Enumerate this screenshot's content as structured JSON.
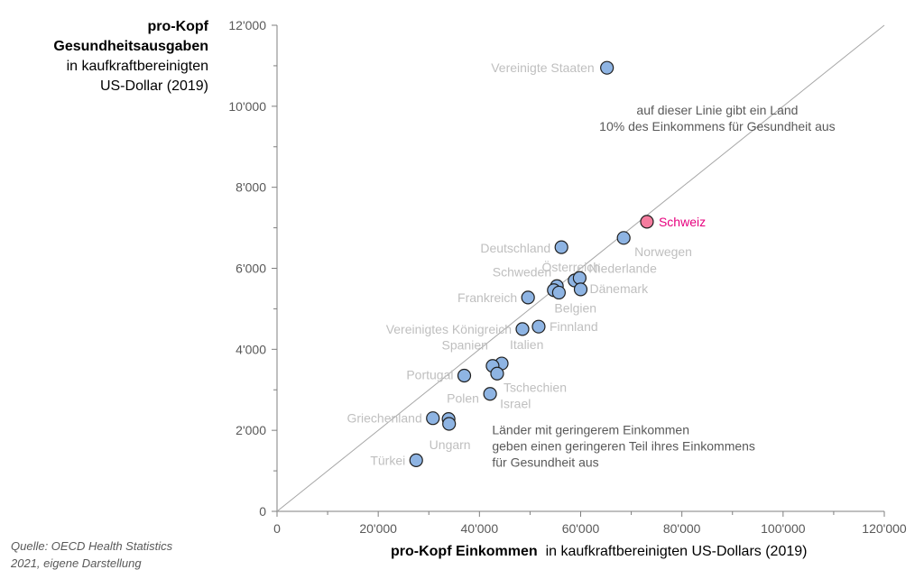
{
  "y_title": {
    "line1": "pro-Kopf",
    "line2": "Gesundheitsausgaben",
    "line3": "in kaufkraftbereinigten",
    "line4": "US-Dollar (2019)"
  },
  "x_title": {
    "bold": "pro-Kopf Einkommen",
    "rest": "in kaufkraftbereinigten US-Dollars (2019)"
  },
  "source": {
    "line1": "Quelle: OECD Health Statistics",
    "line2": "2021, eigene Darstellung"
  },
  "colors": {
    "point_fill": "#8eb4e3",
    "point_stroke": "#1f1f1f",
    "highlight_fill": "#f47c9e",
    "highlight_label": "#e6007e",
    "label_gray": "#bfbfbf",
    "axis": "#7f7f7f",
    "annotation": "#595959"
  },
  "chart_data": {
    "type": "scatter",
    "xlim": [
      0,
      120000
    ],
    "ylim": [
      0,
      12000
    ],
    "xticks": [
      0,
      20000,
      40000,
      60000,
      80000,
      100000,
      120000
    ],
    "xtick_labels": [
      "0",
      "20'000",
      "40'000",
      "60'000",
      "80'000",
      "100'000",
      "120'000"
    ],
    "yticks": [
      0,
      2000,
      4000,
      6000,
      8000,
      10000,
      12000
    ],
    "ytick_labels": [
      "0",
      "2'000",
      "4'000",
      "6'000",
      "8'000",
      "10'000",
      "12'000"
    ],
    "grid": false,
    "reference_line": {
      "x": [
        0,
        120000
      ],
      "y": [
        0,
        12000
      ]
    },
    "annotations": [
      {
        "lines": [
          "auf dieser Linie gibt ein Land",
          "10% des Einkommens für Gesundheit aus"
        ],
        "x": 87000,
        "y": 9800
      },
      {
        "lines": [
          "Länder mit geringerem Einkommen",
          "geben einen geringeren Teil ihres Einkommens",
          "für Gesundheit aus"
        ],
        "x": 42500,
        "y": 1900
      }
    ],
    "points": [
      {
        "label": "Vereinigte Staaten",
        "x": 65200,
        "y": 10950,
        "anchor": "end"
      },
      {
        "label": "Schweiz",
        "x": 73100,
        "y": 7150,
        "anchor": "start",
        "highlight": true
      },
      {
        "label": "Norwegen",
        "x": 68500,
        "y": 6750,
        "anchor": "start"
      },
      {
        "label": "Deutschland",
        "x": 56200,
        "y": 6520,
        "anchor": "end"
      },
      {
        "label": "Österreich",
        "x": 58800,
        "y": 5700,
        "anchor": "middle"
      },
      {
        "label": "Niederlande",
        "x": 59800,
        "y": 5760,
        "anchor": "start"
      },
      {
        "label": "Dänemark",
        "x": 60000,
        "y": 5480,
        "anchor": "start"
      },
      {
        "label": "Schweden",
        "x": 55300,
        "y": 5560,
        "anchor": "end"
      },
      {
        "label": "",
        "x": 54700,
        "y": 5460,
        "anchor": "start"
      },
      {
        "label": "Belgien",
        "x": 55700,
        "y": 5400,
        "anchor": "start"
      },
      {
        "label": "Frankreich",
        "x": 49600,
        "y": 5280,
        "anchor": "end"
      },
      {
        "label": "Finnland",
        "x": 51700,
        "y": 4560,
        "anchor": "start"
      },
      {
        "label": "Vereinigtes Königreich",
        "x": 48500,
        "y": 4500,
        "anchor": "end"
      },
      {
        "label": "Italien",
        "x": 44400,
        "y": 3650,
        "anchor": "start"
      },
      {
        "label": "Spanien",
        "x": 42600,
        "y": 3590,
        "anchor": "end"
      },
      {
        "label": "Tschechien",
        "x": 43500,
        "y": 3400,
        "anchor": "start"
      },
      {
        "label": "Portugal",
        "x": 37000,
        "y": 3350,
        "anchor": "end"
      },
      {
        "label": "Israel",
        "x": 42100,
        "y": 2900,
        "anchor": "start"
      },
      {
        "label": "Polen",
        "x": 33900,
        "y": 2280,
        "anchor": "start"
      },
      {
        "label": "Griechenland",
        "x": 30800,
        "y": 2300,
        "anchor": "end"
      },
      {
        "label": "Ungarn",
        "x": 34000,
        "y": 2160,
        "anchor": "start"
      },
      {
        "label": "Türkei",
        "x": 27500,
        "y": 1260,
        "anchor": "end"
      }
    ]
  }
}
